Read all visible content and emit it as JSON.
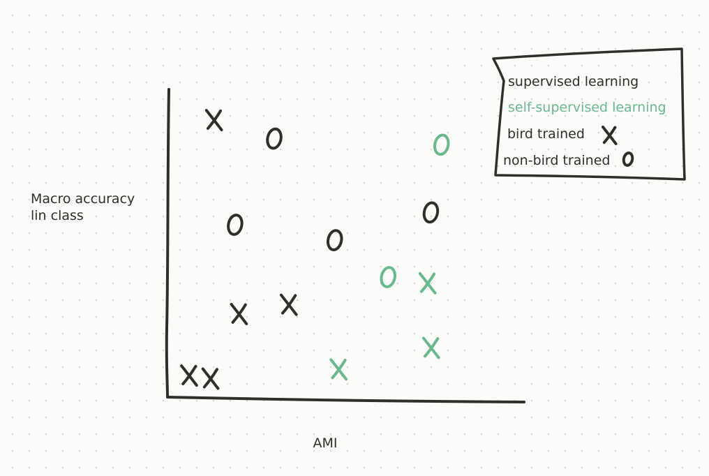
{
  "chart_data": {
    "type": "scatter",
    "title": "",
    "xlabel": "AMI",
    "ylabel": [
      "Macro accuracy",
      "lin class"
    ],
    "xlim": [
      0,
      1
    ],
    "ylim": [
      0,
      1
    ],
    "grid": false,
    "legend_position": "top-right",
    "legend": [
      {
        "label": "supervised learning",
        "color": "#2e2e2b",
        "marker": "none"
      },
      {
        "label": "self-supervised learning",
        "color": "#68b98c",
        "marker": "none"
      },
      {
        "label": "bird trained",
        "color": "#2e2e2b",
        "marker": "x"
      },
      {
        "label": "non-bird trained",
        "color": "#2e2e2b",
        "marker": "o"
      }
    ],
    "series": [
      {
        "color": "#2e2e2b",
        "points": [
          {
            "x": 0.13,
            "y": 0.9,
            "marker": "x"
          },
          {
            "x": 0.3,
            "y": 0.84,
            "marker": "o"
          },
          {
            "x": 0.19,
            "y": 0.56,
            "marker": "o"
          },
          {
            "x": 0.47,
            "y": 0.51,
            "marker": "o"
          },
          {
            "x": 0.74,
            "y": 0.6,
            "marker": "o"
          },
          {
            "x": 0.2,
            "y": 0.27,
            "marker": "x"
          },
          {
            "x": 0.34,
            "y": 0.3,
            "marker": "x"
          },
          {
            "x": 0.06,
            "y": 0.07,
            "marker": "x"
          },
          {
            "x": 0.12,
            "y": 0.06,
            "marker": "x"
          }
        ]
      },
      {
        "color": "#68b98c",
        "points": [
          {
            "x": 0.77,
            "y": 0.82,
            "marker": "o"
          },
          {
            "x": 0.62,
            "y": 0.39,
            "marker": "o"
          },
          {
            "x": 0.73,
            "y": 0.37,
            "marker": "x"
          },
          {
            "x": 0.74,
            "y": 0.16,
            "marker": "x"
          },
          {
            "x": 0.48,
            "y": 0.09,
            "marker": "x"
          }
        ]
      }
    ]
  }
}
